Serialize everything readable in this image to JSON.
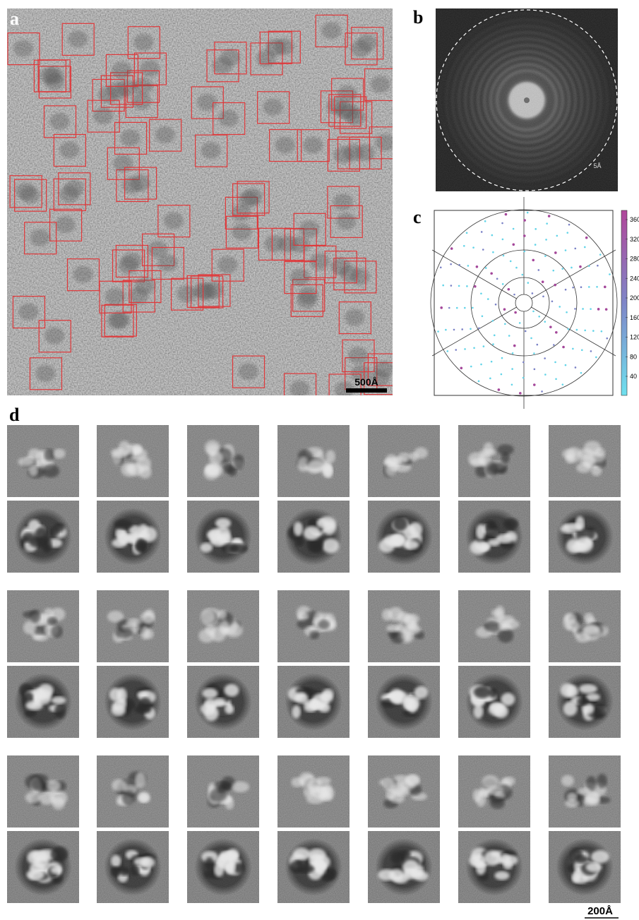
{
  "panels": {
    "a": {
      "label": "a",
      "scale_bar": "500Å"
    },
    "b": {
      "label": "b",
      "ring_label": "5Å"
    },
    "c": {
      "label": "c",
      "colorbar_ticks": [
        360,
        320,
        280,
        240,
        200,
        160,
        120,
        80,
        40
      ]
    },
    "d": {
      "label": "d",
      "scale_bar": "200Å"
    }
  }
}
